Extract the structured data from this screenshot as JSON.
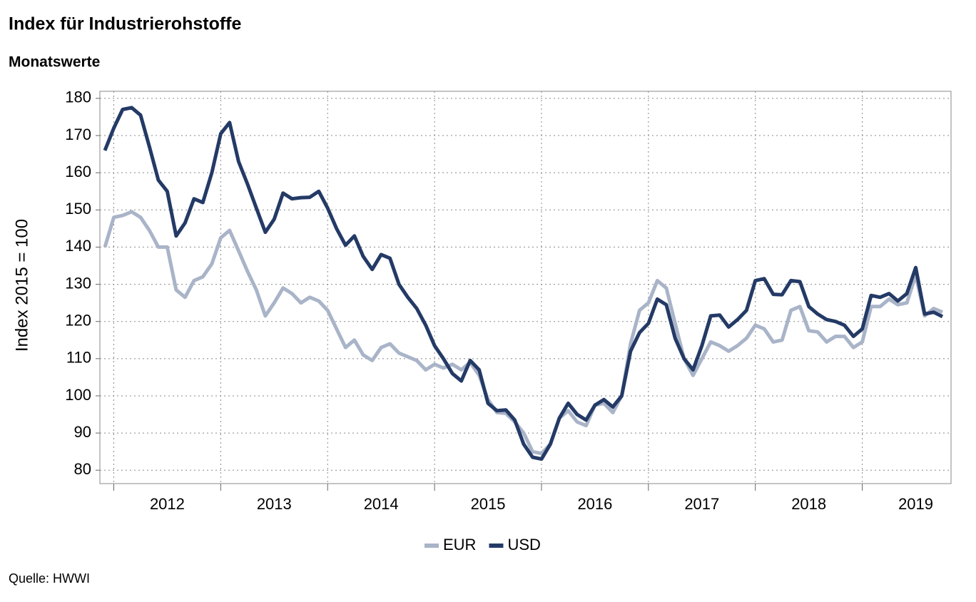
{
  "chart_data": {
    "type": "line",
    "title": "Index für Industrierohstoffe",
    "subtitle": "Monatswerte",
    "y_label": "Index 2015 = 100",
    "source": "Quelle: HWWI",
    "x": [
      2011.917,
      2012,
      2012.083,
      2012.167,
      2012.25,
      2012.333,
      2012.417,
      2012.5,
      2012.583,
      2012.667,
      2012.75,
      2012.833,
      2012.917,
      2013,
      2013.083,
      2013.167,
      2013.25,
      2013.333,
      2013.417,
      2013.5,
      2013.583,
      2013.667,
      2013.75,
      2013.833,
      2013.917,
      2014,
      2014.083,
      2014.167,
      2014.25,
      2014.333,
      2014.417,
      2014.5,
      2014.583,
      2014.667,
      2014.75,
      2014.833,
      2014.917,
      2015,
      2015.083,
      2015.167,
      2015.25,
      2015.333,
      2015.417,
      2015.5,
      2015.583,
      2015.667,
      2015.75,
      2015.833,
      2015.917,
      2016,
      2016.083,
      2016.167,
      2016.25,
      2016.333,
      2016.417,
      2016.5,
      2016.583,
      2016.667,
      2016.75,
      2016.833,
      2016.917,
      2017,
      2017.083,
      2017.167,
      2017.25,
      2017.333,
      2017.417,
      2017.5,
      2017.583,
      2017.667,
      2017.75,
      2017.833,
      2017.917,
      2018,
      2018.083,
      2018.167,
      2018.25,
      2018.333,
      2018.417,
      2018.5,
      2018.583,
      2018.667,
      2018.75,
      2018.833,
      2018.917,
      2019,
      2019.083,
      2019.167,
      2019.25,
      2019.333,
      2019.417,
      2019.5,
      2019.583,
      2019.667,
      2019.75
    ],
    "series": [
      {
        "name": "EUR",
        "color": "#a9b4c8",
        "values": [
          140,
          148,
          148.5,
          149.5,
          148,
          144.5,
          140,
          140,
          128.5,
          126.5,
          131,
          132,
          135.5,
          142.5,
          144.5,
          139,
          133.5,
          128.5,
          121.5,
          125,
          129,
          127.5,
          125,
          126.5,
          125.5,
          123,
          118,
          113,
          115,
          111,
          109.5,
          113,
          114,
          111.5,
          110.5,
          109.5,
          107,
          108.5,
          107.5,
          108.5,
          107,
          109,
          105.5,
          99,
          95.5,
          95.3,
          93,
          90,
          85,
          84.5,
          87,
          94,
          96,
          93,
          92,
          97.5,
          98,
          95.5,
          100,
          114,
          123,
          125,
          131,
          129,
          119.5,
          110,
          105.5,
          110,
          114.5,
          113.5,
          112,
          113.5,
          115.5,
          119,
          118,
          114.5,
          115,
          123,
          124,
          117.5,
          117.2,
          114.5,
          116,
          116,
          113,
          114.5,
          124,
          124,
          126,
          124.5,
          125,
          132.5,
          121.5,
          123.5,
          122.5
        ]
      },
      {
        "name": "USD",
        "color": "#243a66",
        "values": [
          166,
          172,
          177,
          177.5,
          175.5,
          167,
          158,
          155,
          143,
          146.5,
          153,
          152,
          160,
          170.5,
          173.5,
          163,
          157,
          150.5,
          144,
          147.5,
          154.5,
          153,
          153.3,
          153.4,
          155,
          150.5,
          145,
          140.5,
          143,
          137.5,
          134,
          138,
          137,
          130,
          126.5,
          123.5,
          119,
          113.5,
          110,
          106,
          104,
          109.5,
          107,
          98,
          96,
          96.2,
          93.5,
          87,
          83.5,
          83,
          87,
          94,
          98,
          95,
          93.5,
          97.5,
          99,
          97,
          100,
          112,
          117,
          119.5,
          126,
          124.5,
          115.5,
          110,
          107,
          113.5,
          121.5,
          121.7,
          118.5,
          120.5,
          123,
          131,
          131.5,
          127.3,
          127.2,
          131,
          130.7,
          124,
          122,
          120.5,
          120,
          119,
          116,
          118,
          127,
          126.5,
          127.5,
          125.5,
          127.5,
          134.5,
          122,
          122.5,
          121.3
        ]
      }
    ],
    "xlim": [
      2011.87,
      2019.83
    ],
    "xticks": [
      {
        "value": 2012.5,
        "label": "2012"
      },
      {
        "value": 2013.5,
        "label": "2013"
      },
      {
        "value": 2014.5,
        "label": "2014"
      },
      {
        "value": 2015.5,
        "label": "2015"
      },
      {
        "value": 2016.5,
        "label": "2016"
      },
      {
        "value": 2017.5,
        "label": "2017"
      },
      {
        "value": 2018.5,
        "label": "2018"
      },
      {
        "value": 2019.5,
        "label": "2019"
      }
    ],
    "ylim": [
      76.4,
      181.9
    ],
    "yticks": [
      80,
      90,
      100,
      110,
      120,
      130,
      140,
      150,
      160,
      170,
      180
    ],
    "grid": true,
    "legend": "bottom"
  }
}
